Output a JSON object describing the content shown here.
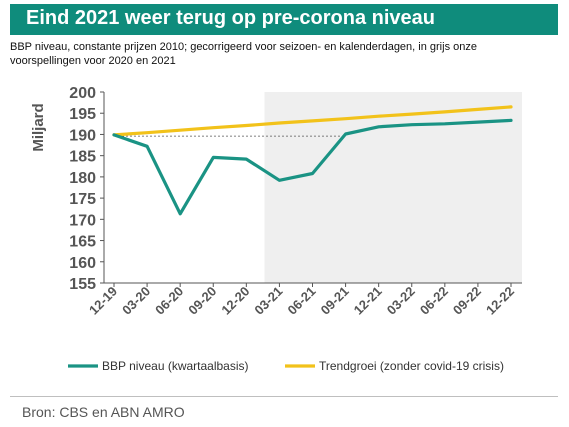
{
  "title": "Eind 2021 weer terug op pre-corona niveau",
  "subtitle": "BBP niveau, constante prijzen 2010;  gecorrigeerd voor seizoen- en kalenderdagen, in grijs onze voorspellingen voor 2020 en 2021",
  "source": "Bron: CBS en ABN AMRO",
  "colors": {
    "title_bg": "#0f8c7c",
    "bbp": "#1a9384",
    "trend": "#f2c21a",
    "forecast_bg": "#efefef",
    "axis": "#555555"
  },
  "chart_data": {
    "type": "line",
    "ylabel": "Miljard",
    "xlabel": "",
    "ylim": [
      155,
      200
    ],
    "yticks": [
      155,
      160,
      165,
      170,
      175,
      180,
      185,
      190,
      195,
      200
    ],
    "categories": [
      "12-19",
      "03-20",
      "06-20",
      "09-20",
      "12-20",
      "03-21",
      "06-21",
      "09-21",
      "12-21",
      "03-22",
      "06-22",
      "09-22",
      "12-22"
    ],
    "forecast_shading_start": "12-20",
    "grid": false,
    "legend_position": "bottom",
    "series": [
      {
        "name": "BBP niveau (kwartaalbasis)",
        "color": "#1a9384",
        "values": [
          189.9,
          187.2,
          171.3,
          184.6,
          184.2,
          179.2,
          180.8,
          190.1,
          191.8,
          192.3,
          192.5,
          192.9,
          193.3
        ]
      },
      {
        "name": "Trendgroei (zonder covid-19 crisis)",
        "color": "#f2c21a",
        "values": [
          189.9,
          190.4,
          191.0,
          191.6,
          192.1,
          192.7,
          193.2,
          193.7,
          194.3,
          194.8,
          195.3,
          195.9,
          196.5
        ]
      }
    ],
    "reference_line": {
      "value": 189.6,
      "from": "12-19",
      "to": "09-21",
      "style": "dashed"
    }
  }
}
